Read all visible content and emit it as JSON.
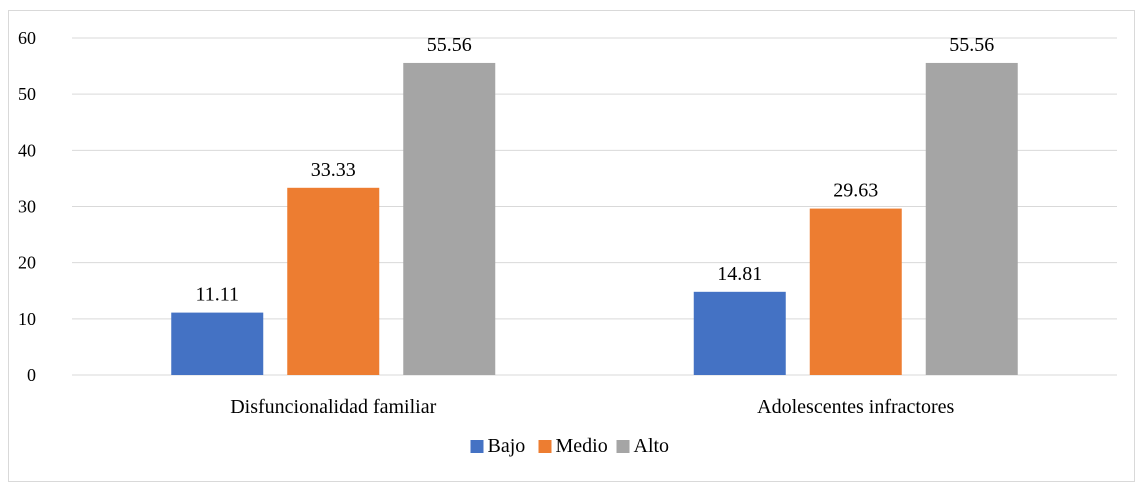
{
  "chart_data": {
    "type": "bar",
    "categories": [
      "Disfuncionalidad familiar",
      "Adolescentes infractores"
    ],
    "series": [
      {
        "name": "Bajo",
        "values": [
          11.11,
          14.81
        ],
        "color": "#4472c4"
      },
      {
        "name": "Medio",
        "values": [
          33.33,
          29.63
        ],
        "color": "#ed7d31"
      },
      {
        "name": "Alto",
        "values": [
          55.56,
          55.56
        ],
        "color": "#a5a5a5"
      }
    ],
    "title": "",
    "xlabel": "",
    "ylabel": "",
    "ylim": [
      0,
      60
    ],
    "yticks": [
      0,
      10,
      20,
      30,
      40,
      50,
      60
    ],
    "grid": true,
    "legend": "bottom",
    "data_labels": true
  }
}
